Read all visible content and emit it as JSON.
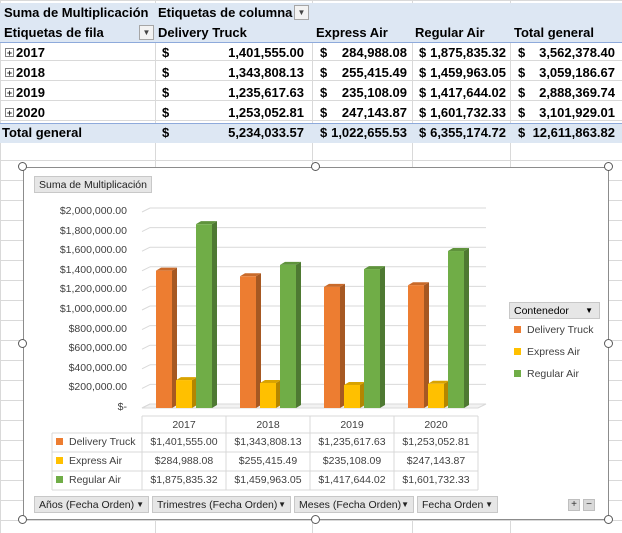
{
  "pivot": {
    "value_field": "Suma de Multiplicación",
    "column_labels": "Etiquetas de columna",
    "row_labels": "Etiquetas de fila",
    "columns": [
      "Delivery Truck",
      "Express Air",
      "Regular Air",
      "Total general"
    ],
    "currency": "$",
    "rows": [
      {
        "label": "2017",
        "values": [
          "1,401,555.00",
          "284,988.08",
          "1,875,835.32",
          "3,562,378.40"
        ]
      },
      {
        "label": "2018",
        "values": [
          "1,343,808.13",
          "255,415.49",
          "1,459,963.05",
          "3,059,186.67"
        ]
      },
      {
        "label": "2019",
        "values": [
          "1,235,617.63",
          "235,108.09",
          "1,417,644.02",
          "2,888,369.74"
        ]
      },
      {
        "label": "2020",
        "values": [
          "1,253,052.81",
          "247,143.87",
          "1,601,732.33",
          "3,101,929.01"
        ]
      }
    ],
    "total": {
      "label": "Total general",
      "values": [
        "5,234,033.57",
        "1,022,655.53",
        "6,355,174.72",
        "12,611,863.82"
      ]
    }
  },
  "chart": {
    "value_button": "Suma de Multiplicación",
    "legend_title": "Contenedor",
    "filter_buttons": [
      "Años (Fecha Orden)",
      "Trimestres (Fecha Orden)",
      "Meses (Fecha Orden)",
      "Fecha Orden"
    ],
    "zoom_in": "+",
    "zoom_out": "−",
    "colors": {
      "Delivery Truck": "#ed7d31",
      "Express Air": "#ffc000",
      "Regular Air": "#70ad47"
    }
  },
  "chart_data": {
    "type": "bar",
    "title": "",
    "categories": [
      "2017",
      "2018",
      "2019",
      "2020"
    ],
    "series": [
      {
        "name": "Delivery Truck",
        "values": [
          1401555.0,
          1343808.13,
          1235617.63,
          1253052.81
        ],
        "labels": [
          "$1,401,555.00",
          "$1,343,808.13",
          "$1,235,617.63",
          "$1,253,052.81"
        ]
      },
      {
        "name": "Express Air",
        "values": [
          284988.08,
          255415.49,
          235108.09,
          247143.87
        ],
        "labels": [
          "$284,988.08",
          "$255,415.49",
          "$235,108.09",
          "$247,143.87"
        ]
      },
      {
        "name": "Regular Air",
        "values": [
          1875835.32,
          1459963.05,
          1417644.02,
          1601732.33
        ],
        "labels": [
          "$1,875,835.32",
          "$1,459,963.05",
          "$1,417,644.02",
          "$1,601,732.33"
        ]
      }
    ],
    "ylim": [
      0,
      2000000
    ],
    "yticks": [
      "$-",
      "$200,000.00",
      "$400,000.00",
      "$600,000.00",
      "$800,000.00",
      "$1,000,000.00",
      "$1,200,000.00",
      "$1,400,000.00",
      "$1,600,000.00",
      "$1,800,000.00",
      "$2,000,000.00"
    ],
    "legend": "right",
    "data_table": true,
    "grid": true
  }
}
